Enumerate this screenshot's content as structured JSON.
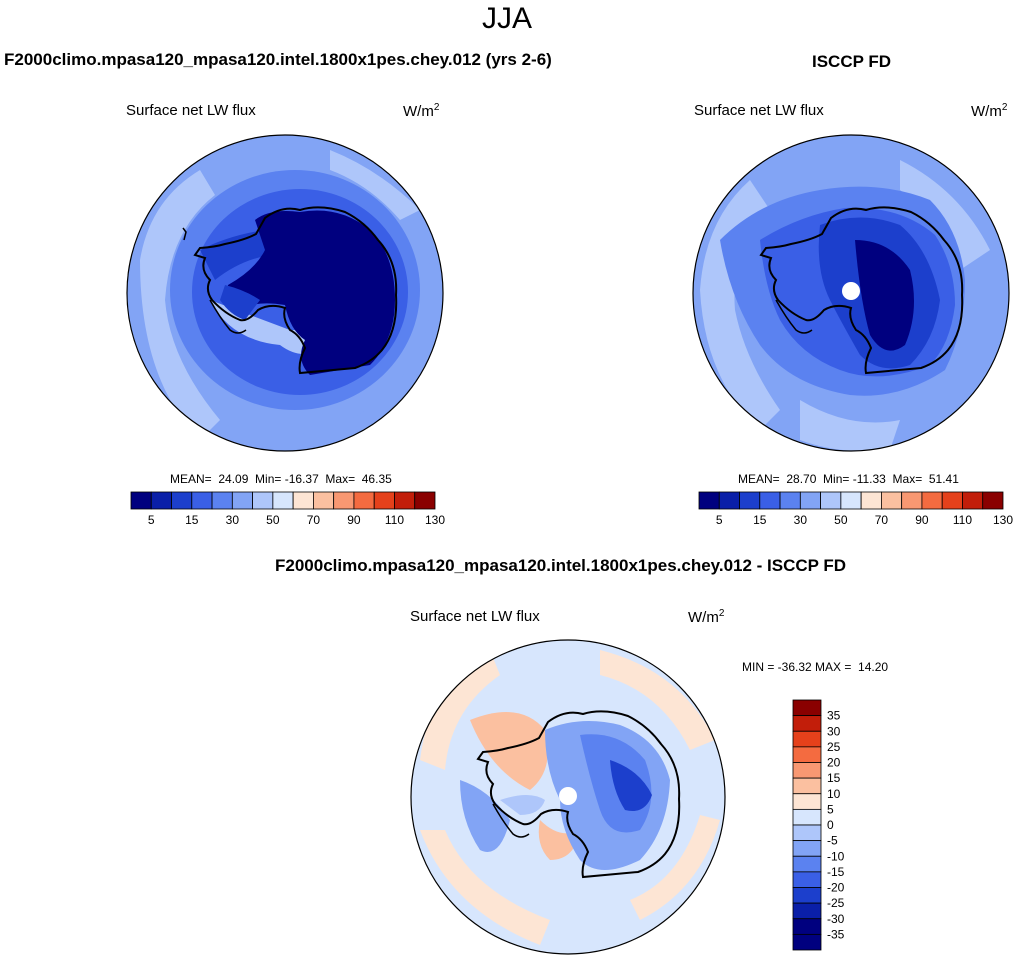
{
  "title": "JJA",
  "palette": {
    "blues": [
      "#00007f",
      "#0a1fa8",
      "#1c3fcc",
      "#3a5fe6",
      "#5b82f0",
      "#82a4f5",
      "#aec6fa",
      "#d7e6fd"
    ],
    "reds": [
      "#fde5d4",
      "#fbc0a0",
      "#f89872",
      "#f46b40",
      "#e5411b",
      "#c21e0a",
      "#8a0000"
    ],
    "land_outline": "#000000"
  },
  "panels": [
    {
      "title": "F2000climo.mpasa120_mpasa120.intel.1800x1pes.chey.012 (yrs 2-6)",
      "variable": "Surface net LW flux",
      "units_base": "W/m",
      "units_exp": "2",
      "stats": "MEAN=  24.09  Min= -16.37  Max=  46.35",
      "colorbar_labels": [
        "5",
        "15",
        "30",
        "50",
        "70",
        "90",
        "110",
        "130"
      ]
    },
    {
      "title": "ISCCP FD",
      "variable": "Surface net LW flux",
      "units_base": "W/m",
      "units_exp": "2",
      "stats": "MEAN=  28.70  Min= -11.33  Max=  51.41",
      "colorbar_labels": [
        "5",
        "15",
        "30",
        "50",
        "70",
        "90",
        "110",
        "130"
      ]
    },
    {
      "title": "F2000climo.mpasa120_mpasa120.intel.1800x1pes.chey.012 - ISCCP FD",
      "variable": "Surface net LW flux",
      "units_base": "W/m",
      "units_exp": "2",
      "stats": "MIN = -36.32 MAX =  14.20",
      "colorbar_labels": [
        "35",
        "30",
        "25",
        "20",
        "15",
        "10",
        "5",
        "0",
        "-5",
        "-10",
        "-15",
        "-20",
        "-25",
        "-30",
        "-35"
      ],
      "colorbar_colors": [
        "#8a0000",
        "#c21e0a",
        "#e5411b",
        "#f46b40",
        "#f89872",
        "#fbc0a0",
        "#fde5d4",
        "#d7e6fd",
        "#aec6fa",
        "#82a4f5",
        "#5b82f0",
        "#3a5fe6",
        "#1c3fcc",
        "#0a1fa8",
        "#00007f"
      ]
    }
  ]
}
